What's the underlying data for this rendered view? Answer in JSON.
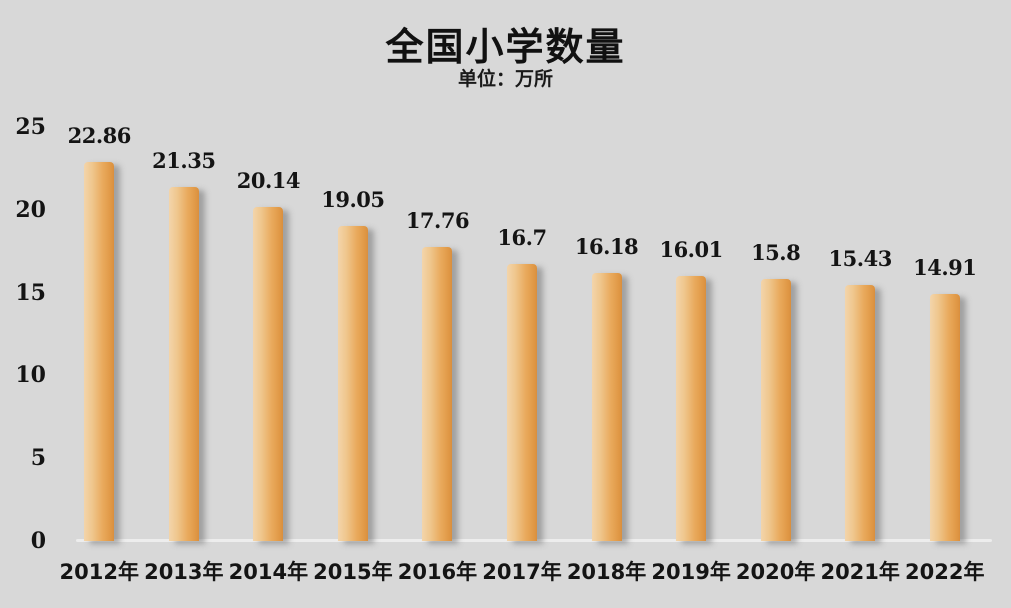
{
  "title": "全国小学数量",
  "subtitle": "单位：万所",
  "colors": {
    "background": "#d8d8d8",
    "bar_gradient_light": "#f3d5ab",
    "bar_gradient_mid": "#e9aa5d",
    "bar_gradient_dark": "#d98f3e",
    "text": "#141414",
    "axis_line": "#ededed"
  },
  "chart_data": {
    "type": "bar",
    "title": "全国小学数量",
    "subtitle": "单位：万所",
    "unit_label": "万所",
    "categories": [
      "2012年",
      "2013年",
      "2014年",
      "2015年",
      "2016年",
      "2017年",
      "2018年",
      "2019年",
      "2020年",
      "2021年",
      "2022年"
    ],
    "values": [
      22.86,
      21.35,
      20.14,
      19.05,
      17.76,
      16.7,
      16.18,
      16.01,
      15.8,
      15.43,
      14.91
    ],
    "data_labels": [
      "22.86",
      "21.35",
      "20.14",
      "19.05",
      "17.76",
      "16.7",
      "16.18",
      "16.01",
      "15.8",
      "15.43",
      "14.91"
    ],
    "y_ticks": [
      0,
      5,
      10,
      15,
      20,
      25
    ],
    "ylim": [
      0,
      25
    ],
    "xlabel": "",
    "ylabel": "",
    "grid": false,
    "legend": false
  }
}
